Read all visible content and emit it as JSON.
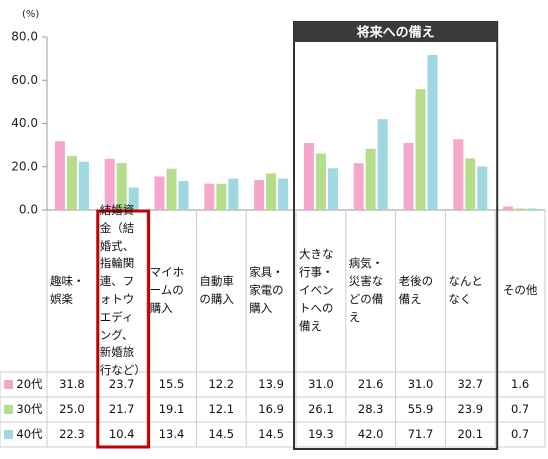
{
  "chart_data": {
    "type": "bar",
    "unit_label": "(%)",
    "annotation": "将来への備え",
    "categories": [
      "趣味・娯楽",
      "結婚資金（結婚式、指輪関連、フォトウエディング、新婚旅行など）",
      "マイホームの購入",
      "自動車の購入",
      "家具・家電の購入",
      "大きな行事・イベントへの備え",
      "病気・災害などの備え",
      "老後の備え",
      "なんとなく",
      "その他"
    ],
    "series": [
      {
        "name": "20代",
        "color": "#f4a7c9",
        "values": [
          31.8,
          23.7,
          15.5,
          12.2,
          13.9,
          31.0,
          21.6,
          31.0,
          32.7,
          1.6
        ],
        "value_labels": [
          "31.8",
          "23.7",
          "15.5",
          "12.2",
          "13.9",
          "31.0",
          "21.6",
          "31.0",
          "32.7",
          "1.6"
        ]
      },
      {
        "name": "30代",
        "color": "#b6dd8b",
        "values": [
          25.0,
          21.7,
          19.1,
          12.1,
          16.9,
          26.1,
          28.3,
          55.9,
          23.9,
          0.7
        ],
        "value_labels": [
          "25.0",
          "21.7",
          "19.1",
          "12.1",
          "16.9",
          "26.1",
          "28.3",
          "55.9",
          "23.9",
          "0.7"
        ]
      },
      {
        "name": "40代",
        "color": "#9fd8e0",
        "values": [
          22.3,
          10.4,
          13.4,
          14.5,
          14.5,
          19.3,
          42.0,
          71.7,
          20.1,
          0.7
        ],
        "value_labels": [
          "22.3",
          "10.4",
          "13.4",
          "14.5",
          "14.5",
          "19.3",
          "42.0",
          "71.7",
          "20.1",
          "0.7"
        ]
      }
    ],
    "ylim": [
      0,
      80
    ],
    "yticks": [
      {
        "value": 0,
        "label": "0.0"
      },
      {
        "value": 20,
        "label": "20.0"
      },
      {
        "value": 40,
        "label": "40.0"
      },
      {
        "value": 60,
        "label": "60.0"
      },
      {
        "value": 80,
        "label": "80.0"
      }
    ],
    "grid": false
  }
}
